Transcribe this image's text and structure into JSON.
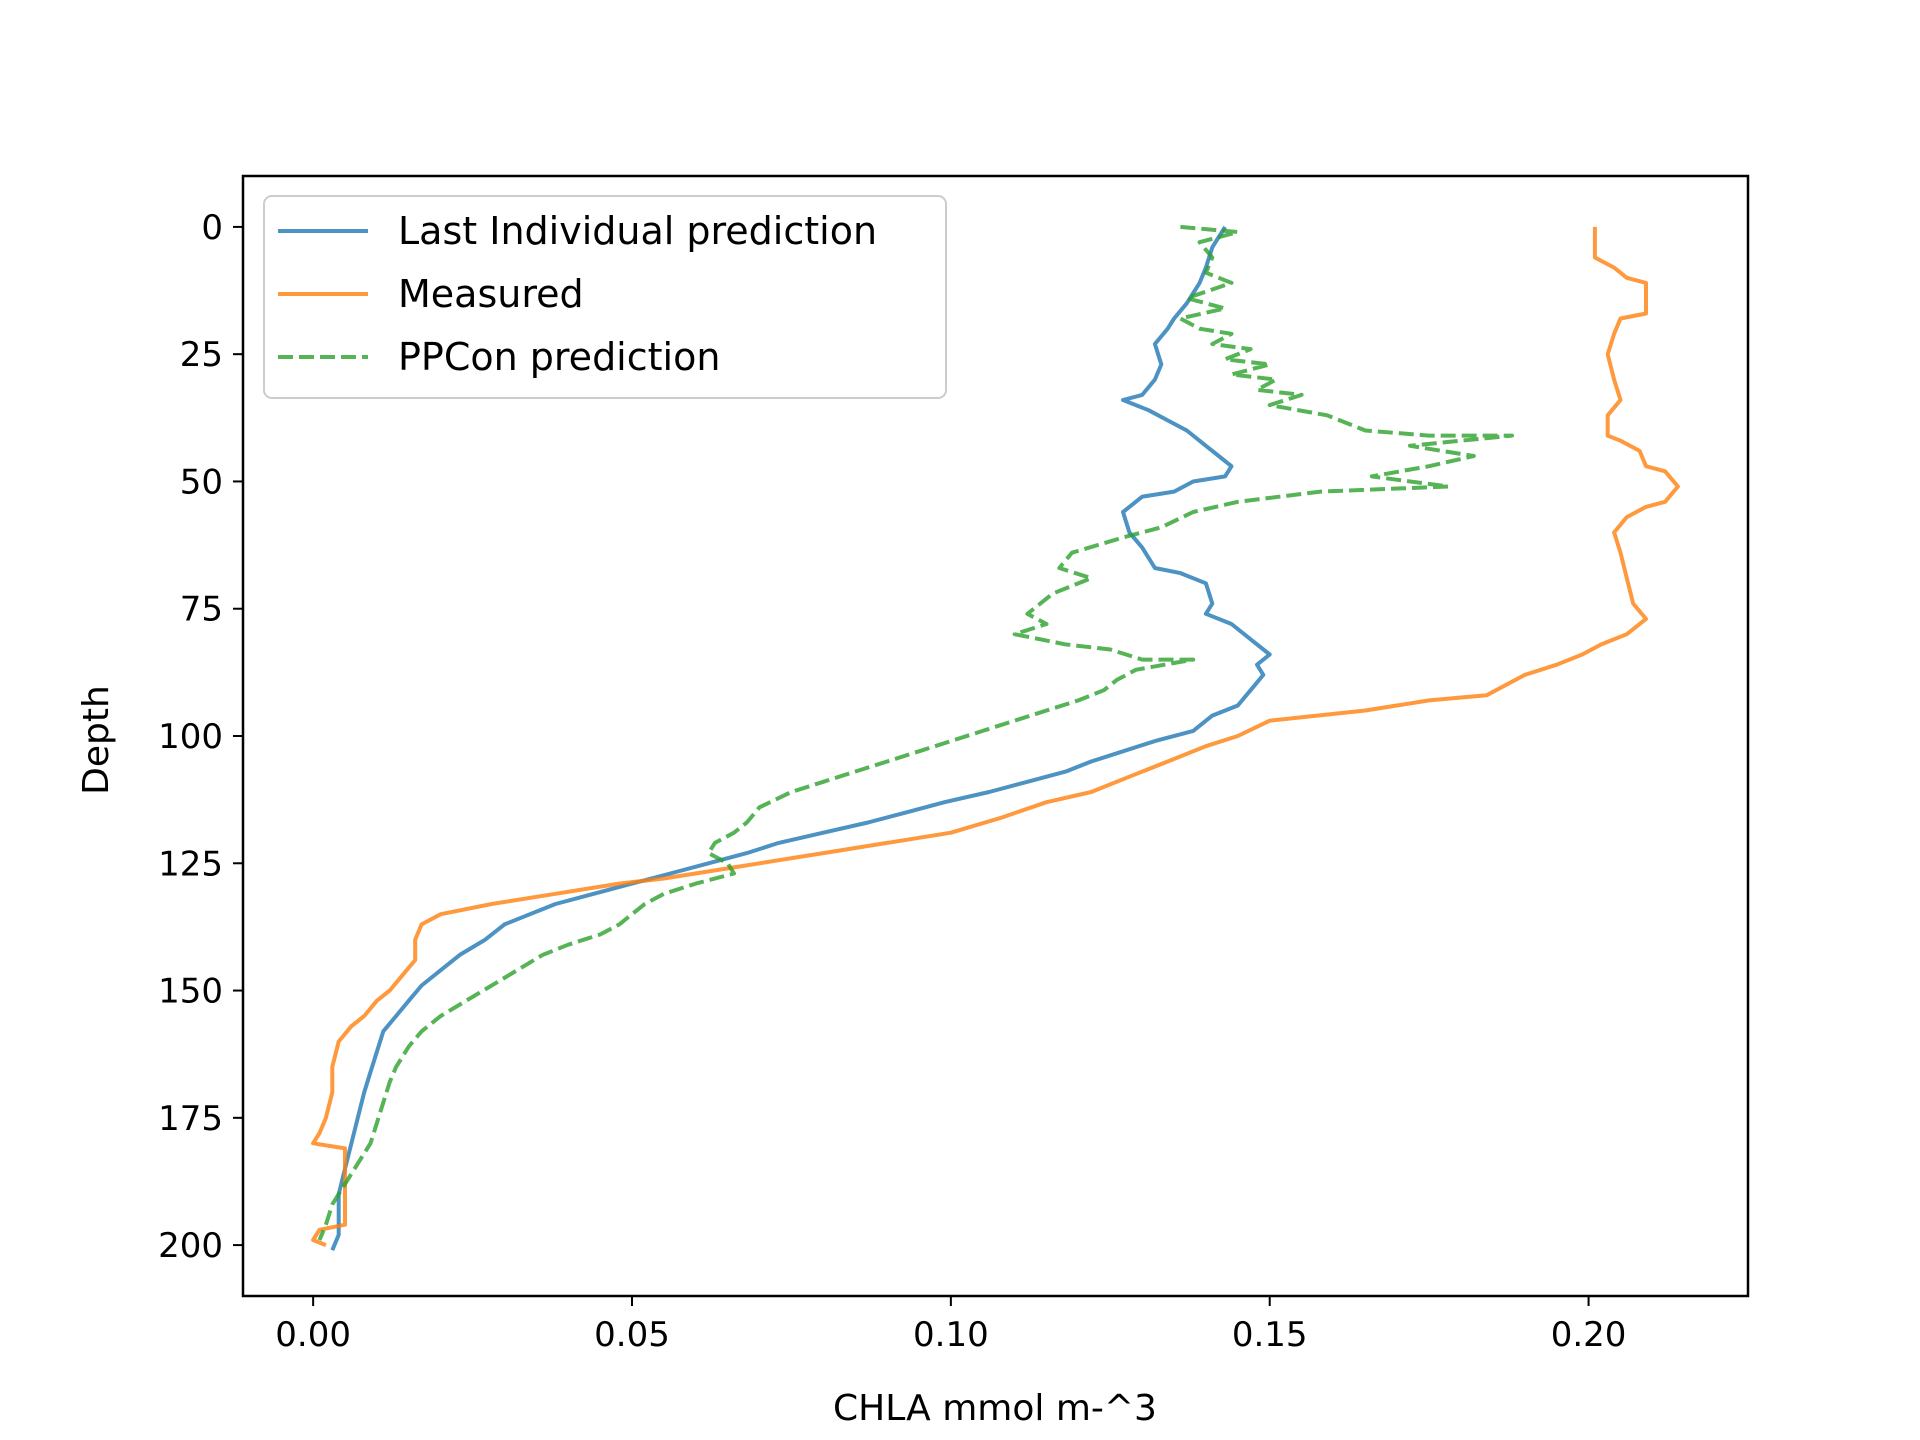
{
  "chart_data": {
    "type": "line",
    "title": "",
    "xlabel": "CHLA mmol m-^3",
    "ylabel": "Depth",
    "xlim": [
      -0.011,
      0.225
    ],
    "ylim": [
      210,
      -10
    ],
    "y_inverted": true,
    "grid": false,
    "legend_position": "top-left",
    "xticks": [
      0.0,
      0.05,
      0.1,
      0.15,
      0.2
    ],
    "xtick_labels": [
      "0.00",
      "0.05",
      "0.10",
      "0.15",
      "0.20"
    ],
    "yticks": [
      0,
      25,
      50,
      75,
      100,
      125,
      150,
      175,
      200
    ],
    "ytick_labels": [
      "0",
      "25",
      "50",
      "75",
      "100",
      "125",
      "150",
      "175",
      "200"
    ],
    "series": [
      {
        "name": "Last Individual prediction",
        "color": "#1f77b4",
        "style": "solid",
        "points": [
          [
            0.143,
            0
          ],
          [
            0.141,
            4
          ],
          [
            0.14,
            8
          ],
          [
            0.139,
            11
          ],
          [
            0.137,
            15
          ],
          [
            0.135,
            18
          ],
          [
            0.134,
            20
          ],
          [
            0.132,
            23
          ],
          [
            0.133,
            27
          ],
          [
            0.132,
            30
          ],
          [
            0.13,
            33
          ],
          [
            0.127,
            34
          ],
          [
            0.131,
            36
          ],
          [
            0.134,
            38
          ],
          [
            0.137,
            40
          ],
          [
            0.14,
            43
          ],
          [
            0.142,
            45
          ],
          [
            0.144,
            47
          ],
          [
            0.143,
            49
          ],
          [
            0.138,
            50
          ],
          [
            0.135,
            52
          ],
          [
            0.13,
            53
          ],
          [
            0.127,
            56
          ],
          [
            0.128,
            60
          ],
          [
            0.13,
            63
          ],
          [
            0.132,
            67
          ],
          [
            0.136,
            68
          ],
          [
            0.14,
            70
          ],
          [
            0.141,
            74
          ],
          [
            0.14,
            76
          ],
          [
            0.144,
            78
          ],
          [
            0.147,
            81
          ],
          [
            0.15,
            84
          ],
          [
            0.148,
            86
          ],
          [
            0.149,
            88
          ],
          [
            0.147,
            91
          ],
          [
            0.145,
            94
          ],
          [
            0.141,
            96
          ],
          [
            0.138,
            99
          ],
          [
            0.132,
            101
          ],
          [
            0.127,
            103
          ],
          [
            0.122,
            105
          ],
          [
            0.118,
            107
          ],
          [
            0.112,
            109
          ],
          [
            0.106,
            111
          ],
          [
            0.099,
            113
          ],
          [
            0.093,
            115
          ],
          [
            0.087,
            117
          ],
          [
            0.08,
            119
          ],
          [
            0.073,
            121
          ],
          [
            0.068,
            123
          ],
          [
            0.062,
            125
          ],
          [
            0.056,
            127
          ],
          [
            0.05,
            129
          ],
          [
            0.044,
            131
          ],
          [
            0.038,
            133
          ],
          [
            0.034,
            135
          ],
          [
            0.03,
            137
          ],
          [
            0.027,
            140
          ],
          [
            0.023,
            143
          ],
          [
            0.02,
            146
          ],
          [
            0.017,
            149
          ],
          [
            0.015,
            152
          ],
          [
            0.013,
            155
          ],
          [
            0.011,
            158
          ],
          [
            0.01,
            162
          ],
          [
            0.009,
            166
          ],
          [
            0.008,
            170
          ],
          [
            0.007,
            175
          ],
          [
            0.006,
            180
          ],
          [
            0.005,
            185
          ],
          [
            0.004,
            190
          ],
          [
            0.004,
            195
          ],
          [
            0.004,
            198
          ],
          [
            0.003,
            201
          ]
        ]
      },
      {
        "name": "Measured",
        "color": "#ff7f0e",
        "style": "solid",
        "points": [
          [
            0.201,
            0
          ],
          [
            0.201,
            6
          ],
          [
            0.204,
            8
          ],
          [
            0.206,
            10
          ],
          [
            0.209,
            11
          ],
          [
            0.209,
            17
          ],
          [
            0.205,
            18
          ],
          [
            0.204,
            21
          ],
          [
            0.203,
            25
          ],
          [
            0.204,
            30
          ],
          [
            0.205,
            34
          ],
          [
            0.203,
            37
          ],
          [
            0.203,
            41
          ],
          [
            0.205,
            42
          ],
          [
            0.208,
            44
          ],
          [
            0.209,
            47
          ],
          [
            0.212,
            48
          ],
          [
            0.214,
            51
          ],
          [
            0.212,
            54
          ],
          [
            0.209,
            55
          ],
          [
            0.206,
            57
          ],
          [
            0.204,
            60
          ],
          [
            0.205,
            64
          ],
          [
            0.206,
            69
          ],
          [
            0.207,
            74
          ],
          [
            0.209,
            77
          ],
          [
            0.206,
            80
          ],
          [
            0.202,
            82
          ],
          [
            0.199,
            84
          ],
          [
            0.195,
            86
          ],
          [
            0.19,
            88
          ],
          [
            0.184,
            92
          ],
          [
            0.175,
            93
          ],
          [
            0.165,
            95
          ],
          [
            0.15,
            97
          ],
          [
            0.145,
            100
          ],
          [
            0.14,
            102
          ],
          [
            0.134,
            105
          ],
          [
            0.128,
            108
          ],
          [
            0.122,
            111
          ],
          [
            0.115,
            113
          ],
          [
            0.108,
            116
          ],
          [
            0.1,
            119
          ],
          [
            0.09,
            121
          ],
          [
            0.08,
            123
          ],
          [
            0.065,
            126
          ],
          [
            0.055,
            128
          ],
          [
            0.048,
            129
          ],
          [
            0.038,
            131
          ],
          [
            0.028,
            133
          ],
          [
            0.02,
            135
          ],
          [
            0.017,
            137
          ],
          [
            0.016,
            140
          ],
          [
            0.016,
            144
          ],
          [
            0.014,
            147
          ],
          [
            0.012,
            150
          ],
          [
            0.01,
            152
          ],
          [
            0.008,
            155
          ],
          [
            0.006,
            157
          ],
          [
            0.004,
            160
          ],
          [
            0.003,
            165
          ],
          [
            0.003,
            170
          ],
          [
            0.002,
            175
          ],
          [
            0.001,
            178
          ],
          [
            0.0,
            180
          ],
          [
            0.005,
            181
          ],
          [
            0.005,
            186
          ],
          [
            0.005,
            191
          ],
          [
            0.005,
            196
          ],
          [
            0.001,
            197
          ],
          [
            0.0,
            199
          ],
          [
            0.002,
            200
          ]
        ]
      },
      {
        "name": "PPCon prediction",
        "color": "#2ca02c",
        "style": "dashed",
        "points": [
          [
            0.136,
            0
          ],
          [
            0.145,
            1
          ],
          [
            0.139,
            3
          ],
          [
            0.141,
            6
          ],
          [
            0.14,
            9
          ],
          [
            0.144,
            11
          ],
          [
            0.137,
            14
          ],
          [
            0.143,
            16
          ],
          [
            0.136,
            18
          ],
          [
            0.139,
            20
          ],
          [
            0.144,
            21
          ],
          [
            0.141,
            23
          ],
          [
            0.147,
            24
          ],
          [
            0.143,
            26
          ],
          [
            0.15,
            27
          ],
          [
            0.144,
            29
          ],
          [
            0.151,
            30
          ],
          [
            0.148,
            32
          ],
          [
            0.155,
            33
          ],
          [
            0.15,
            35
          ],
          [
            0.159,
            37
          ],
          [
            0.165,
            40
          ],
          [
            0.175,
            41
          ],
          [
            0.188,
            41
          ],
          [
            0.172,
            43
          ],
          [
            0.182,
            45
          ],
          [
            0.175,
            47
          ],
          [
            0.166,
            49
          ],
          [
            0.178,
            51
          ],
          [
            0.158,
            52
          ],
          [
            0.145,
            54
          ],
          [
            0.138,
            56
          ],
          [
            0.133,
            59
          ],
          [
            0.127,
            61
          ],
          [
            0.119,
            64
          ],
          [
            0.117,
            67
          ],
          [
            0.122,
            69
          ],
          [
            0.116,
            72
          ],
          [
            0.112,
            76
          ],
          [
            0.115,
            78
          ],
          [
            0.11,
            80
          ],
          [
            0.118,
            82
          ],
          [
            0.125,
            83
          ],
          [
            0.13,
            85
          ],
          [
            0.138,
            85
          ],
          [
            0.129,
            87
          ],
          [
            0.126,
            89
          ],
          [
            0.124,
            91
          ],
          [
            0.12,
            93
          ],
          [
            0.115,
            95
          ],
          [
            0.11,
            97
          ],
          [
            0.105,
            99
          ],
          [
            0.1,
            101
          ],
          [
            0.095,
            103
          ],
          [
            0.09,
            105
          ],
          [
            0.085,
            107
          ],
          [
            0.08,
            109
          ],
          [
            0.075,
            111
          ],
          [
            0.07,
            114
          ],
          [
            0.068,
            117
          ],
          [
            0.066,
            119
          ],
          [
            0.063,
            121
          ],
          [
            0.062,
            123
          ],
          [
            0.065,
            125
          ],
          [
            0.066,
            127
          ],
          [
            0.06,
            129
          ],
          [
            0.055,
            131
          ],
          [
            0.052,
            133
          ],
          [
            0.05,
            135
          ],
          [
            0.048,
            137
          ],
          [
            0.045,
            139
          ],
          [
            0.04,
            141
          ],
          [
            0.036,
            143
          ],
          [
            0.032,
            146
          ],
          [
            0.028,
            149
          ],
          [
            0.024,
            152
          ],
          [
            0.02,
            155
          ],
          [
            0.017,
            158
          ],
          [
            0.015,
            161
          ],
          [
            0.013,
            165
          ],
          [
            0.012,
            168
          ],
          [
            0.011,
            172
          ],
          [
            0.01,
            176
          ],
          [
            0.009,
            180
          ],
          [
            0.007,
            184
          ],
          [
            0.005,
            188
          ],
          [
            0.003,
            192
          ],
          [
            0.002,
            196
          ],
          [
            0.001,
            199
          ]
        ]
      }
    ]
  }
}
